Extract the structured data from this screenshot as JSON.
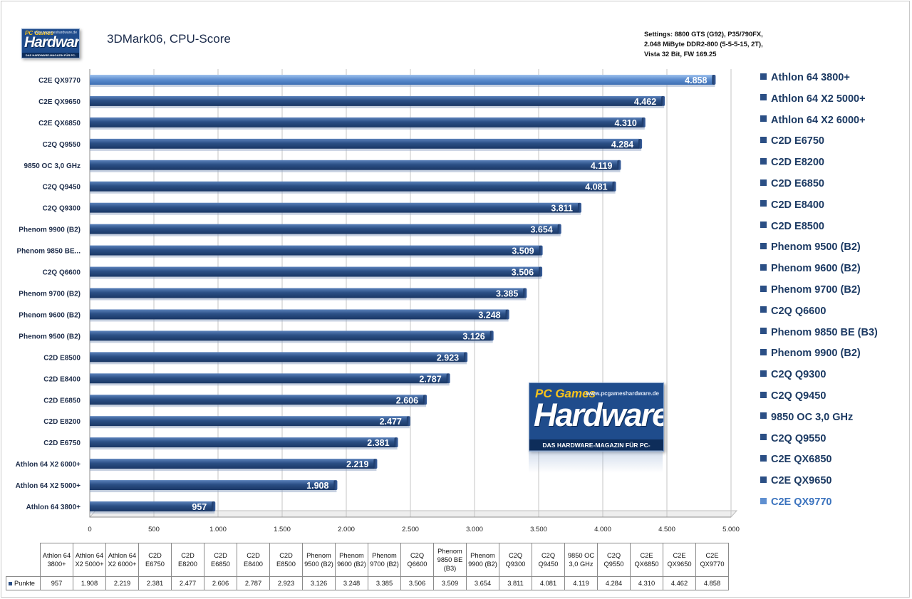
{
  "title": "3DMark06, CPU-Score",
  "settings": [
    "Settings: 8800 GTS (G92), P35/790FX,",
    "2.048 MiByte DDR2-800 (5-5-5-15, 2T),",
    "Vista 32 Bit, FW 169.25"
  ],
  "logo": {
    "top": "PC Games",
    "main": "Hardware",
    "site": "www.pcgameshardware.de",
    "sub": "DAS HARDWARE-MAGAZIN FÜR PC-SPIELER"
  },
  "colors": {
    "bar": "#2b4f85",
    "bar_highlight": "#5f8fd0",
    "grid": "#c0c0c0"
  },
  "chart_data": {
    "type": "bar",
    "orientation": "horizontal",
    "categories": [
      "Athlon 64 3800+",
      "Athlon 64 X2 5000+",
      "Athlon 64 X2 6000+",
      "C2D E6750",
      "C2D E8200",
      "C2D E6850",
      "C2D E8400",
      "C2D E8500",
      "Phenom 9500 (B2)",
      "Phenom 9600 (B2)",
      "Phenom 9700 (B2)",
      "C2Q Q6600",
      "Phenom 9850 BE (B3)",
      "Phenom 9900 (B2)",
      "C2Q Q9300",
      "C2Q Q9450",
      "9850 OC 3,0 GHz",
      "C2Q Q9550",
      "C2E QX6850",
      "C2E QX9650",
      "C2E QX9770"
    ],
    "axis_categories": [
      "Athlon 64 3800+",
      "Athlon 64 X2 5000+",
      "Athlon 64 X2 6000+",
      "C2D E6750",
      "C2D E8200",
      "C2D E6850",
      "C2D E8400",
      "C2D E8500",
      "Phenom 9500  (B2)",
      "Phenom 9600  (B2)",
      "Phenom 9700  (B2)",
      "C2Q Q6600",
      "Phenom 9850  BE...",
      "Phenom 9900  (B2)",
      "C2Q Q9300",
      "C2Q Q9450",
      "9850  OC 3,0 GHz",
      "C2Q Q9550",
      "C2E QX6850",
      "C2E QX9650",
      "C2E QX9770"
    ],
    "table_categories": [
      "Athlon 64 3800+",
      "Athlon 64 X2 5000+",
      "Athlon 64 X2 6000+",
      "C2D E6750",
      "C2D E8200",
      "C2D E6850",
      "C2D E8400",
      "C2D E8500",
      "Phenom 9500 (B2)",
      "Phenom 9600 (B2)",
      "Phenom 9700 (B2)",
      "C2Q Q6600",
      "Phenom 9850 BE (B3)",
      "Phenom 9900 (B2)",
      "C2Q Q9300",
      "C2Q Q9450",
      "9850 OC 3,0 GHz",
      "C2Q Q9550",
      "C2E QX6850",
      "C2E QX9650",
      "C2E QX9770"
    ],
    "series": [
      {
        "name": "Punkte",
        "values": [
          957,
          1908,
          2219,
          2381,
          2477,
          2606,
          2787,
          2923,
          3126,
          3248,
          3385,
          3506,
          3509,
          3654,
          3811,
          4081,
          4119,
          4284,
          4310,
          4462,
          4858
        ]
      }
    ],
    "value_labels": [
      "957",
      "1.908",
      "2.219",
      "2.381",
      "2.477",
      "2.606",
      "2.787",
      "2.923",
      "3.126",
      "3.248",
      "3.385",
      "3.506",
      "3.509",
      "3.654",
      "3.811",
      "4.081",
      "4.119",
      "4.284",
      "4.310",
      "4.462",
      "4.858"
    ],
    "highlight": "C2E QX9770",
    "xlim": [
      0,
      5000
    ],
    "xticks": [
      0,
      500,
      1000,
      1500,
      2000,
      2500,
      3000,
      3500,
      4000,
      4500,
      5000
    ],
    "xtick_labels": [
      "0",
      "500",
      "1.000",
      "1.500",
      "2.000",
      "2.500",
      "3.000",
      "3.500",
      "4.000",
      "4.500",
      "5.000"
    ],
    "grid": true,
    "legend_position": "right",
    "xlabel": "",
    "ylabel": ""
  }
}
